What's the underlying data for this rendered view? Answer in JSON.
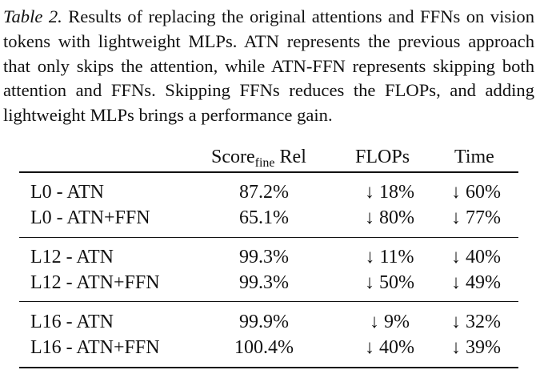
{
  "caption": {
    "label": "Table 2.",
    "text": "Results of replacing the original attentions and FFNs on vision tokens with lightweight MLPs. ATN represents the previous approach that only skips the attention, while ATN-FFN represents skipping both attention and FFNs. Skipping FFNs reduces the FLOPs, and adding lightweight MLPs brings a performance gain."
  },
  "table": {
    "headers": {
      "score_main": "Score",
      "score_sub": "fine",
      "score_suffix": " Rel",
      "flops": "FLOPs",
      "time": "Time"
    },
    "groups": [
      {
        "rows": [
          {
            "method": "L0 - ATN",
            "score": "87.2%",
            "flops": "↓ 18%",
            "time": "↓ 60%"
          },
          {
            "method": "L0 - ATN+FFN",
            "score": "65.1%",
            "flops": "↓ 80%",
            "time": "↓ 77%"
          }
        ]
      },
      {
        "rows": [
          {
            "method": "L12 - ATN",
            "score": "99.3%",
            "flops": "↓ 11%",
            "time": "↓ 40%"
          },
          {
            "method": "L12 - ATN+FFN",
            "score": "99.3%",
            "flops": "↓ 50%",
            "time": "↓ 49%"
          }
        ]
      },
      {
        "rows": [
          {
            "method": "L16 - ATN",
            "score": "99.9%",
            "flops": "↓ 9%",
            "time": "↓ 32%"
          },
          {
            "method": "L16 - ATN+FFN",
            "score": "100.4%",
            "flops": "↓ 40%",
            "time": "↓ 39%"
          }
        ]
      }
    ]
  }
}
